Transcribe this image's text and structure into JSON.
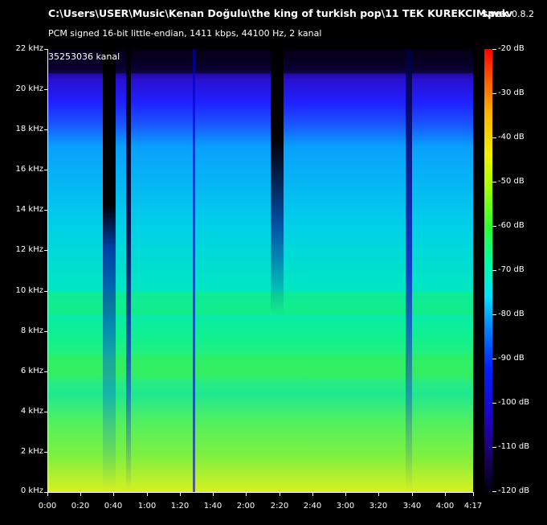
{
  "window": {
    "file_path": "C:\\Users\\USER\\Music\\Kenan Doğulu\\the king of turkish pop\\11 TEK KUREKCIM.wav",
    "audio_info": "PCM signed 16-bit little-endian, 1411 kbps, 44100 Hz, 2 kanal",
    "app_name": "spek",
    "app_version": "0.8.2"
  },
  "spectrogram": {
    "overlay_label": "35253036 kanal"
  },
  "y_axis": {
    "labels": [
      "22 kHz",
      "20 kHz",
      "18 kHz",
      "16 kHz",
      "14 kHz",
      "12 kHz",
      "10 kHz",
      "8 kHz",
      "6 kHz",
      "4 kHz",
      "2 kHz",
      "0 kHz"
    ]
  },
  "x_axis": {
    "labels": [
      "0:00",
      "0:20",
      "0:40",
      "1:00",
      "1:20",
      "1:40",
      "2:00",
      "2:20",
      "2:40",
      "3:00",
      "3:20",
      "3:40",
      "4:00",
      "4:17"
    ]
  },
  "colorbar": {
    "labels": [
      "-20 dB",
      "-30 dB",
      "-40 dB",
      "-50 dB",
      "-60 dB",
      "-70 dB",
      "-80 dB",
      "-90 dB",
      "-100 dB",
      "-110 dB",
      "-120 dB"
    ]
  },
  "colors": {
    "background": "#000000",
    "text": "#ffffff"
  }
}
